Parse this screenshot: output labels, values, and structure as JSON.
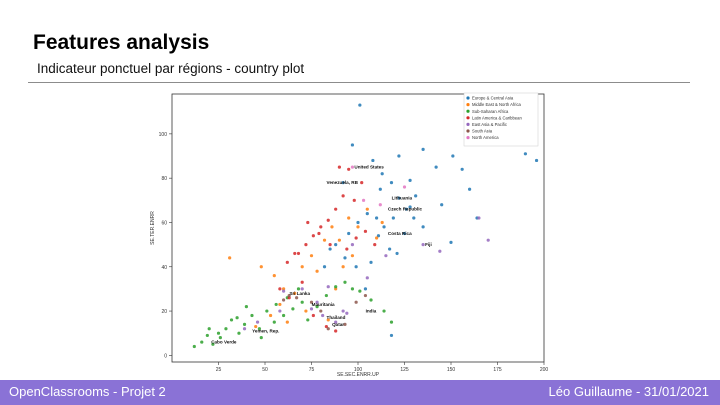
{
  "slide": {
    "title": "Features analysis",
    "subtitle": "Indicateur ponctuel par régions - country plot"
  },
  "footer": {
    "left": "OpenClassrooms - Projet 2",
    "right": "Léo Guillaume - 31/01/2021",
    "color": "#8a72d6"
  },
  "chart_data": {
    "type": "scatter",
    "xlabel": "SE.SEC.ENRR.UP",
    "ylabel": "SE.TER.ENRR",
    "xlim": [
      0,
      200
    ],
    "ylim": [
      -3,
      118
    ],
    "xticks": [
      25,
      50,
      75,
      100,
      125,
      150,
      175,
      200
    ],
    "yticks": [
      0,
      20,
      40,
      60,
      80,
      100
    ],
    "grid": false,
    "legend_position": "top-right",
    "series": [
      {
        "name": "Europe & Central Asia",
        "color": "#1f77b4",
        "points": [
          [
            101,
            113
          ],
          [
            97,
            95
          ],
          [
            108,
            88
          ],
          [
            113,
            82
          ],
          [
            122,
            90
          ],
          [
            128,
            79
          ],
          [
            135,
            93
          ],
          [
            142,
            85
          ],
          [
            151,
            90
          ],
          [
            156,
            84
          ],
          [
            160,
            75
          ],
          [
            164,
            62
          ],
          [
            190,
            91
          ],
          [
            196,
            88
          ],
          [
            112,
            75
          ],
          [
            118,
            78
          ],
          [
            122,
            71
          ],
          [
            126,
            66
          ],
          [
            130,
            62
          ],
          [
            135,
            58
          ],
          [
            125,
            55
          ],
          [
            110,
            62
          ],
          [
            114,
            58
          ],
          [
            117,
            48
          ],
          [
            121,
            46
          ],
          [
            105,
            64
          ],
          [
            100,
            60
          ],
          [
            95,
            55
          ],
          [
            88,
            50
          ],
          [
            93,
            44
          ],
          [
            85,
            48
          ],
          [
            111,
            54
          ],
          [
            119,
            62
          ],
          [
            131,
            72
          ],
          [
            145,
            68
          ],
          [
            150,
            51
          ],
          [
            107,
            42
          ],
          [
            99,
            40
          ],
          [
            82,
            40
          ],
          [
            104,
            30
          ],
          [
            118,
            9
          ],
          [
            128,
            67
          ],
          [
            92,
            78
          ]
        ]
      },
      {
        "name": "Middle East & North Africa",
        "color": "#ff7f0e",
        "points": [
          [
            31,
            44
          ],
          [
            48,
            40
          ],
          [
            55,
            36
          ],
          [
            60,
            30
          ],
          [
            66,
            28
          ],
          [
            70,
            40
          ],
          [
            75,
            45
          ],
          [
            78,
            38
          ],
          [
            82,
            52
          ],
          [
            86,
            58
          ],
          [
            90,
            52
          ],
          [
            95,
            62
          ],
          [
            100,
            58
          ],
          [
            105,
            66
          ],
          [
            110,
            53
          ],
          [
            113,
            60
          ],
          [
            88,
            30
          ],
          [
            92,
            40
          ],
          [
            97,
            45
          ],
          [
            53,
            18
          ],
          [
            58,
            23
          ],
          [
            45,
            13
          ],
          [
            62,
            15
          ],
          [
            72,
            20
          ],
          [
            84,
            16
          ]
        ]
      },
      {
        "name": "Sub-Saharan Africa",
        "color": "#2ca02c",
        "points": [
          [
            12,
            4
          ],
          [
            16,
            6
          ],
          [
            19,
            9
          ],
          [
            22,
            5
          ],
          [
            26,
            8
          ],
          [
            29,
            12
          ],
          [
            32,
            16
          ],
          [
            36,
            10
          ],
          [
            39,
            14
          ],
          [
            43,
            18
          ],
          [
            47,
            12
          ],
          [
            51,
            20
          ],
          [
            56,
            23
          ],
          [
            60,
            18
          ],
          [
            65,
            21
          ],
          [
            70,
            24
          ],
          [
            73,
            16
          ],
          [
            78,
            22
          ],
          [
            83,
            27
          ],
          [
            88,
            31
          ],
          [
            93,
            33
          ],
          [
            97,
            30
          ],
          [
            101,
            29
          ],
          [
            107,
            25
          ],
          [
            114,
            20
          ],
          [
            118,
            15
          ],
          [
            40,
            22
          ],
          [
            48,
            8
          ],
          [
            55,
            15
          ],
          [
            62,
            26
          ],
          [
            68,
            30
          ],
          [
            20,
            12
          ],
          [
            25,
            10
          ],
          [
            35,
            17
          ]
        ]
      },
      {
        "name": "Latin America & Caribbean",
        "color": "#d62728",
        "points": [
          [
            62,
            42
          ],
          [
            68,
            46
          ],
          [
            72,
            50
          ],
          [
            76,
            54
          ],
          [
            80,
            58
          ],
          [
            84,
            61
          ],
          [
            88,
            66
          ],
          [
            92,
            72
          ],
          [
            98,
            70
          ],
          [
            102,
            78
          ],
          [
            95,
            84
          ],
          [
            90,
            85
          ],
          [
            85,
            50
          ],
          [
            79,
            55
          ],
          [
            73,
            60
          ],
          [
            66,
            46
          ],
          [
            58,
            30
          ],
          [
            63,
            26
          ],
          [
            70,
            33
          ],
          [
            83,
            13
          ],
          [
            88,
            11
          ],
          [
            76,
            18
          ],
          [
            94,
            48
          ],
          [
            99,
            53
          ],
          [
            104,
            56
          ],
          [
            109,
            50
          ]
        ]
      },
      {
        "name": "East Asia & Pacific",
        "color": "#9467bd",
        "points": [
          [
            39,
            12
          ],
          [
            46,
            15
          ],
          [
            60,
            29
          ],
          [
            75,
            21
          ],
          [
            81,
            18
          ],
          [
            88,
            15
          ],
          [
            92,
            20
          ],
          [
            94,
            19
          ],
          [
            97,
            50
          ],
          [
            115,
            45
          ],
          [
            135,
            50
          ],
          [
            144,
            47
          ],
          [
            165,
            62
          ],
          [
            170,
            52
          ],
          [
            70,
            30
          ],
          [
            105,
            35
          ],
          [
            78,
            24
          ],
          [
            84,
            31
          ],
          [
            58,
            20
          ]
        ]
      },
      {
        "name": "South Asia",
        "color": "#8c564b",
        "points": [
          [
            60,
            25
          ],
          [
            63,
            27
          ],
          [
            67,
            26
          ],
          [
            75,
            24
          ],
          [
            80,
            20
          ],
          [
            84,
            12
          ],
          [
            93,
            14
          ],
          [
            99,
            24
          ],
          [
            104,
            27
          ]
        ]
      },
      {
        "name": "North America",
        "color": "#e377c2",
        "points": [
          [
            97,
            85
          ],
          [
            103,
            70
          ],
          [
            112,
            68
          ],
          [
            125,
            76
          ]
        ]
      }
    ],
    "annotations": [
      {
        "text": "United States",
        "x": 97,
        "y": 85
      },
      {
        "text": "Venezuela, RB",
        "x": 82,
        "y": 78
      },
      {
        "text": "Lithuania",
        "x": 117,
        "y": 71
      },
      {
        "text": "Czech Republic",
        "x": 115,
        "y": 66
      },
      {
        "text": "Costa Rica",
        "x": 115,
        "y": 55
      },
      {
        "text": "Fiji",
        "x": 135,
        "y": 50
      },
      {
        "text": "Sri Lanka",
        "x": 62,
        "y": 28
      },
      {
        "text": "Mauritania",
        "x": 74,
        "y": 23
      },
      {
        "text": "India",
        "x": 103,
        "y": 20
      },
      {
        "text": "Thailand",
        "x": 82,
        "y": 17
      },
      {
        "text": "Qatar",
        "x": 85,
        "y": 14
      },
      {
        "text": "Yemen, Rep.",
        "x": 42,
        "y": 11
      },
      {
        "text": "Cabo Verde",
        "x": 20,
        "y": 6
      }
    ]
  }
}
